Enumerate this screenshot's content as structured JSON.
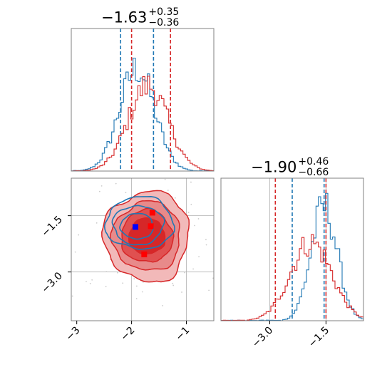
{
  "chart_data": {
    "type": "corner",
    "colors": {
      "blue": "#1f77b4",
      "red": "#d62728",
      "grid": "#b0b0b0"
    },
    "panels": [
      {
        "panel": "x-marginal",
        "type": "step-histogram",
        "title": {
          "main": "−1.63",
          "sup": "+0.35",
          "sub": "−0.36"
        },
        "xlim": [
          -3.1,
          -0.5
        ],
        "series": [
          {
            "name": "",
            "color": "#1f77b4",
            "mean": -1.9,
            "sd": 0.32,
            "quantile_lines": [
              -2.2,
              -1.6
            ],
            "peak": 0.72
          },
          {
            "name": "",
            "color": "#d62728",
            "mean": -1.7,
            "sd": 0.36,
            "quantile_lines": [
              -2.0,
              -1.29
            ],
            "peak": 0.6
          }
        ]
      },
      {
        "panel": "joint",
        "type": "contour",
        "xlim": [
          -3.1,
          -0.5
        ],
        "ylim": [
          -4.3,
          -0.5
        ],
        "xticks": [
          -3,
          -2,
          -1
        ],
        "xticklabels": [
          "−3",
          "−2",
          "−1"
        ],
        "yticks": [
          -1.5,
          -3.0
        ],
        "yticklabels": [
          "−1.5",
          "−3.0"
        ],
        "vlines": [
          -2.0,
          -1.0
        ],
        "hlines": [
          -1.5,
          -3.0
        ],
        "markers": [
          {
            "color": "#0000ff",
            "x": -1.93,
            "y": -1.8
          },
          {
            "color": "#ff0000",
            "x": -1.65,
            "y": -1.78
          },
          {
            "color": "#ff0000",
            "x": -1.62,
            "y": -1.42
          },
          {
            "color": "#ff0000",
            "x": -1.77,
            "y": -2.53
          }
        ]
      },
      {
        "panel": "y-marginal",
        "type": "step-histogram",
        "title": {
          "main": "−1.90",
          "sup": "+0.46",
          "sub": "−0.66"
        },
        "xlim": [
          -4.3,
          -0.5
        ],
        "xticks": [
          -3.0,
          -1.5
        ],
        "xticklabels": [
          "−3.0",
          "−1.5"
        ],
        "vlines": [
          -3.0,
          -1.5
        ],
        "series": [
          {
            "name": "",
            "color": "#1f77b4",
            "mean": -1.55,
            "sd": 0.35,
            "quantile_lines": [
              -2.4,
              -1.55
            ],
            "peak": 0.8
          },
          {
            "name": "",
            "color": "#d62728",
            "mean": -1.9,
            "sd": 0.55,
            "quantile_lines": [
              -2.85,
              -1.5
            ],
            "peak": 0.55
          }
        ]
      }
    ]
  }
}
